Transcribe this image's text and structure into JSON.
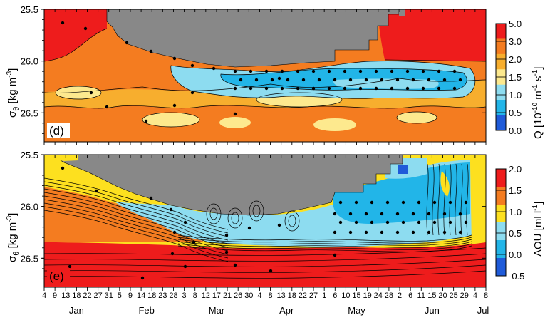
{
  "chart_data": [
    {
      "panel": "(d)",
      "type": "heatmap",
      "title": "",
      "ylabel_main": "σ",
      "ylabel_sub": "θ",
      "ylabel_rest": " [kg m",
      "ylabel_exp": "-3",
      "ylabel_close": "]",
      "y_ticks": [
        "25.5",
        "26.0",
        "26.5"
      ],
      "y_tick_values": [
        25.5,
        26.0,
        26.5
      ],
      "ylim": [
        25.5,
        26.78
      ],
      "y_inverted": true,
      "colorbar_label": "Q [10",
      "colorbar_exp1": "-10",
      "colorbar_mid": " m",
      "colorbar_exp2": "-1",
      "colorbar_mid2": " s",
      "colorbar_exp3": "-1",
      "colorbar_close": "]",
      "colorbar_ticks": [
        "5.0",
        "3.0",
        "2.0",
        "1.5",
        "1.0",
        "0.5",
        "0.0"
      ],
      "colorbar_tick_values": [
        5.0,
        3.0,
        2.0,
        1.5,
        1.0,
        0.5,
        0.0
      ],
      "colorbar_colors": [
        "#ee1c1c",
        "#f47c20",
        "#f7ae2e",
        "#fde98e",
        "#8ddcf0",
        "#22b5e8",
        "#1f5bd9"
      ]
    },
    {
      "panel": "(e)",
      "type": "heatmap",
      "title": "",
      "ylabel_main": "σ",
      "ylabel_sub": "θ",
      "ylabel_rest": " [kg m",
      "ylabel_exp": "-3",
      "ylabel_close": "]",
      "y_ticks": [
        "25.5",
        "26.0",
        "26.5"
      ],
      "y_tick_values": [
        25.5,
        26.0,
        26.5
      ],
      "ylim": [
        25.5,
        26.78
      ],
      "y_inverted": true,
      "colorbar_label": "AOU [ml l",
      "colorbar_exp1": "-1",
      "colorbar_close": "]",
      "colorbar_ticks": [
        "2.0",
        "1.5",
        "1.0",
        "0.5",
        "0.0",
        "-0.5"
      ],
      "colorbar_tick_values": [
        2.0,
        1.5,
        1.0,
        0.5,
        0.0,
        -0.5
      ],
      "colorbar_colors": [
        "#ee1c1c",
        "#f47c20",
        "#fde01f",
        "#8ddcf0",
        "#22b5e8",
        "#1f5bd9"
      ]
    }
  ],
  "x_axis": {
    "date_ticks": [
      "4",
      "9",
      "13",
      "18",
      "22",
      "27",
      "31",
      "5",
      "9",
      "14",
      "18",
      "23",
      "28",
      "3",
      "8",
      "12",
      "17",
      "21",
      "26",
      "30",
      "4",
      "8",
      "13",
      "18",
      "22",
      "27",
      "1",
      "6",
      "10",
      "15",
      "19",
      "24",
      "28",
      "2",
      "6",
      "11",
      "15",
      "20",
      "25",
      "29",
      "4",
      "8"
    ],
    "months": [
      "Jan",
      "Feb",
      "Mar",
      "Apr",
      "May",
      "Jun",
      "Jul"
    ]
  }
}
